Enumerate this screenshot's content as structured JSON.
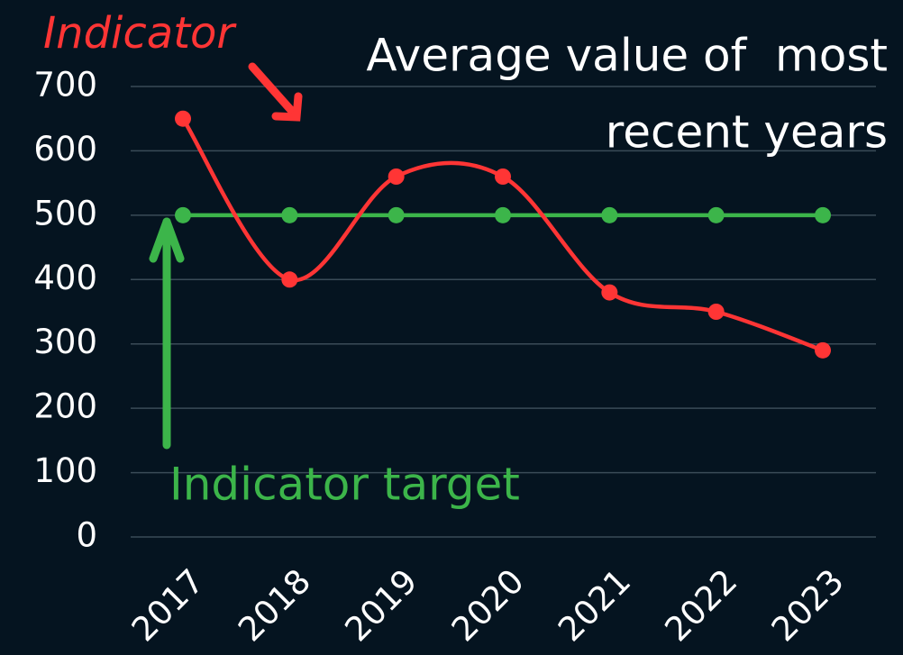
{
  "chart_data": {
    "type": "line",
    "categories": [
      "2017",
      "2018",
      "2019",
      "2020",
      "2021",
      "2022",
      "2023"
    ],
    "series": [
      {
        "name": "Indicator",
        "color": "#ff3535",
        "values": [
          650,
          400,
          560,
          560,
          380,
          350,
          290
        ]
      },
      {
        "name": "Indicator target",
        "color": "#3cb54a",
        "values": [
          500,
          500,
          500,
          500,
          500,
          500,
          500
        ]
      }
    ],
    "annotation": [
      "Average value of  most",
      "recent years"
    ],
    "ylim": [
      0,
      700
    ],
    "yticks": [
      0,
      100,
      200,
      300,
      400,
      500,
      600,
      700
    ],
    "grid": true
  }
}
